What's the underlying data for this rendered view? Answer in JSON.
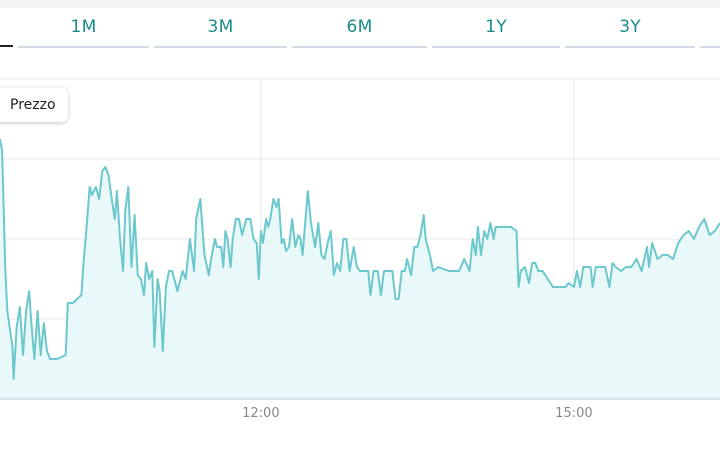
{
  "range_tabs": [
    "1M",
    "3M",
    "6M",
    "1Y",
    "3Y"
  ],
  "chart_data": {
    "type": "area",
    "legend": [
      "Prezzo"
    ],
    "x_tick_labels": [
      "12:00",
      "15:00"
    ],
    "grid": true,
    "colors": {
      "line": "#6cc8cc",
      "fill": "#e9f8f8",
      "grid": "#e8e8e8",
      "axis": "#c5ccd6",
      "tick": "#888888"
    },
    "series": [
      {
        "name": "Prezzo",
        "points": [
          [
            9.5,
            6.5
          ],
          [
            9.52,
            6.2
          ],
          [
            9.55,
            3.3
          ],
          [
            9.57,
            2.2
          ],
          [
            9.62,
            1.3
          ],
          [
            9.63,
            0.5
          ],
          [
            9.66,
            1.8
          ],
          [
            9.69,
            2.3
          ],
          [
            9.72,
            1.1
          ],
          [
            9.75,
            2.2
          ],
          [
            9.78,
            2.7
          ],
          [
            9.8,
            1.9
          ],
          [
            9.83,
            1.0
          ],
          [
            9.86,
            2.2
          ],
          [
            9.89,
            1.1
          ],
          [
            9.92,
            1.9
          ],
          [
            9.95,
            1.2
          ],
          [
            9.98,
            1.0
          ],
          [
            10.05,
            1.0
          ],
          [
            10.13,
            1.1
          ],
          [
            10.15,
            2.4
          ],
          [
            10.2,
            2.4
          ],
          [
            10.28,
            2.6
          ],
          [
            10.3,
            3.4
          ],
          [
            10.33,
            4.3
          ],
          [
            10.36,
            5.3
          ],
          [
            10.38,
            5.1
          ],
          [
            10.42,
            5.3
          ],
          [
            10.45,
            5.0
          ],
          [
            10.48,
            5.7
          ],
          [
            10.51,
            5.8
          ],
          [
            10.54,
            5.6
          ],
          [
            10.57,
            5.0
          ],
          [
            10.6,
            4.5
          ],
          [
            10.62,
            5.2
          ],
          [
            10.65,
            4.0
          ],
          [
            10.68,
            3.2
          ],
          [
            10.7,
            4.7
          ],
          [
            10.73,
            5.3
          ],
          [
            10.76,
            3.3
          ],
          [
            10.79,
            4.6
          ],
          [
            10.82,
            3.1
          ],
          [
            10.85,
            3.0
          ],
          [
            10.88,
            2.6
          ],
          [
            10.9,
            3.4
          ],
          [
            10.93,
            3.0
          ],
          [
            10.96,
            3.2
          ],
          [
            10.98,
            1.3
          ],
          [
            11.01,
            3.0
          ],
          [
            11.03,
            2.7
          ],
          [
            11.06,
            1.2
          ],
          [
            11.09,
            2.8
          ],
          [
            11.12,
            3.2
          ],
          [
            11.15,
            3.2
          ],
          [
            11.2,
            2.7
          ],
          [
            11.25,
            3.2
          ],
          [
            11.28,
            3.0
          ],
          [
            11.32,
            4.0
          ],
          [
            11.36,
            3.2
          ],
          [
            11.38,
            4.5
          ],
          [
            11.42,
            5.0
          ],
          [
            11.46,
            3.6
          ],
          [
            11.5,
            3.1
          ],
          [
            11.53,
            3.6
          ],
          [
            11.56,
            4.0
          ],
          [
            11.58,
            3.8
          ],
          [
            11.62,
            3.8
          ],
          [
            11.64,
            3.3
          ],
          [
            11.66,
            4.2
          ],
          [
            11.68,
            4.0
          ],
          [
            11.71,
            3.3
          ],
          [
            11.73,
            4.0
          ],
          [
            11.76,
            4.5
          ],
          [
            11.79,
            4.5
          ],
          [
            11.82,
            4.1
          ],
          [
            11.86,
            4.5
          ],
          [
            11.9,
            4.5
          ],
          [
            11.93,
            4.0
          ],
          [
            11.96,
            3.9
          ],
          [
            11.98,
            3.0
          ],
          [
            12.0,
            4.2
          ],
          [
            12.02,
            3.9
          ],
          [
            12.05,
            4.5
          ],
          [
            12.07,
            4.3
          ],
          [
            12.09,
            4.5
          ],
          [
            12.12,
            5.0
          ],
          [
            12.15,
            4.8
          ],
          [
            12.17,
            5.0
          ],
          [
            12.2,
            3.9
          ],
          [
            12.22,
            4.0
          ],
          [
            12.24,
            3.7
          ],
          [
            12.27,
            3.8
          ],
          [
            12.3,
            4.5
          ],
          [
            12.33,
            3.8
          ],
          [
            12.36,
            4.1
          ],
          [
            12.38,
            4.0
          ],
          [
            12.4,
            3.6
          ],
          [
            12.45,
            5.2
          ],
          [
            12.48,
            4.4
          ],
          [
            12.52,
            3.8
          ],
          [
            12.55,
            4.4
          ],
          [
            12.58,
            3.6
          ],
          [
            12.61,
            3.5
          ],
          [
            12.64,
            3.9
          ],
          [
            12.67,
            4.2
          ],
          [
            12.7,
            3.1
          ],
          [
            12.73,
            3.4
          ],
          [
            12.76,
            3.2
          ],
          [
            12.79,
            4.0
          ],
          [
            12.82,
            4.0
          ],
          [
            12.85,
            3.2
          ],
          [
            12.89,
            3.8
          ],
          [
            12.92,
            3.3
          ],
          [
            12.95,
            3.2
          ],
          [
            12.99,
            3.2
          ],
          [
            13.03,
            3.2
          ],
          [
            13.05,
            2.6
          ],
          [
            13.08,
            3.2
          ],
          [
            13.12,
            3.2
          ],
          [
            13.15,
            2.6
          ],
          [
            13.18,
            3.2
          ],
          [
            13.22,
            3.2
          ],
          [
            13.26,
            3.2
          ],
          [
            13.29,
            2.5
          ],
          [
            13.32,
            2.5
          ],
          [
            13.35,
            3.2
          ],
          [
            13.38,
            3.2
          ],
          [
            13.4,
            3.5
          ],
          [
            13.44,
            3.1
          ],
          [
            13.47,
            3.8
          ],
          [
            13.5,
            3.8
          ],
          [
            13.53,
            4.1
          ],
          [
            13.56,
            4.6
          ],
          [
            13.58,
            4.0
          ],
          [
            13.62,
            3.6
          ],
          [
            13.65,
            3.2
          ],
          [
            13.7,
            3.3
          ],
          [
            13.8,
            3.2
          ],
          [
            13.9,
            3.2
          ],
          [
            13.95,
            3.5
          ],
          [
            14.0,
            3.2
          ],
          [
            14.03,
            4.0
          ],
          [
            14.06,
            3.6
          ],
          [
            14.08,
            4.3
          ],
          [
            14.11,
            3.6
          ],
          [
            14.14,
            4.2
          ],
          [
            14.17,
            4.0
          ],
          [
            14.2,
            4.4
          ],
          [
            14.23,
            4.0
          ],
          [
            14.25,
            4.3
          ],
          [
            14.3,
            4.3
          ],
          [
            14.4,
            4.3
          ],
          [
            14.45,
            4.2
          ],
          [
            14.47,
            2.8
          ],
          [
            14.49,
            3.2
          ],
          [
            14.53,
            3.3
          ],
          [
            14.57,
            2.9
          ],
          [
            14.6,
            3.4
          ],
          [
            14.63,
            3.4
          ],
          [
            14.66,
            3.2
          ],
          [
            14.7,
            3.2
          ],
          [
            14.75,
            3.0
          ],
          [
            14.8,
            2.8
          ],
          [
            14.88,
            2.8
          ],
          [
            14.92,
            2.8
          ],
          [
            14.95,
            2.9
          ],
          [
            15.0,
            2.8
          ],
          [
            15.03,
            3.2
          ],
          [
            15.06,
            2.8
          ],
          [
            15.09,
            3.3
          ],
          [
            15.12,
            3.3
          ],
          [
            15.16,
            3.3
          ],
          [
            15.18,
            2.8
          ],
          [
            15.21,
            3.3
          ],
          [
            15.26,
            3.3
          ],
          [
            15.3,
            3.3
          ],
          [
            15.34,
            2.8
          ],
          [
            15.37,
            3.4
          ],
          [
            15.4,
            3.3
          ],
          [
            15.45,
            3.2
          ],
          [
            15.5,
            3.3
          ],
          [
            15.55,
            3.3
          ],
          [
            15.6,
            3.5
          ],
          [
            15.65,
            3.2
          ],
          [
            15.7,
            3.8
          ],
          [
            15.72,
            3.3
          ],
          [
            15.75,
            3.9
          ],
          [
            15.8,
            3.5
          ],
          [
            15.85,
            3.6
          ],
          [
            15.9,
            3.6
          ],
          [
            15.95,
            3.5
          ],
          [
            16.0,
            3.9
          ],
          [
            16.05,
            4.1
          ],
          [
            16.1,
            4.2
          ],
          [
            16.15,
            4.0
          ],
          [
            16.2,
            4.3
          ],
          [
            16.25,
            4.5
          ],
          [
            16.3,
            4.1
          ],
          [
            16.35,
            4.2
          ],
          [
            16.4,
            4.4
          ]
        ]
      }
    ]
  }
}
